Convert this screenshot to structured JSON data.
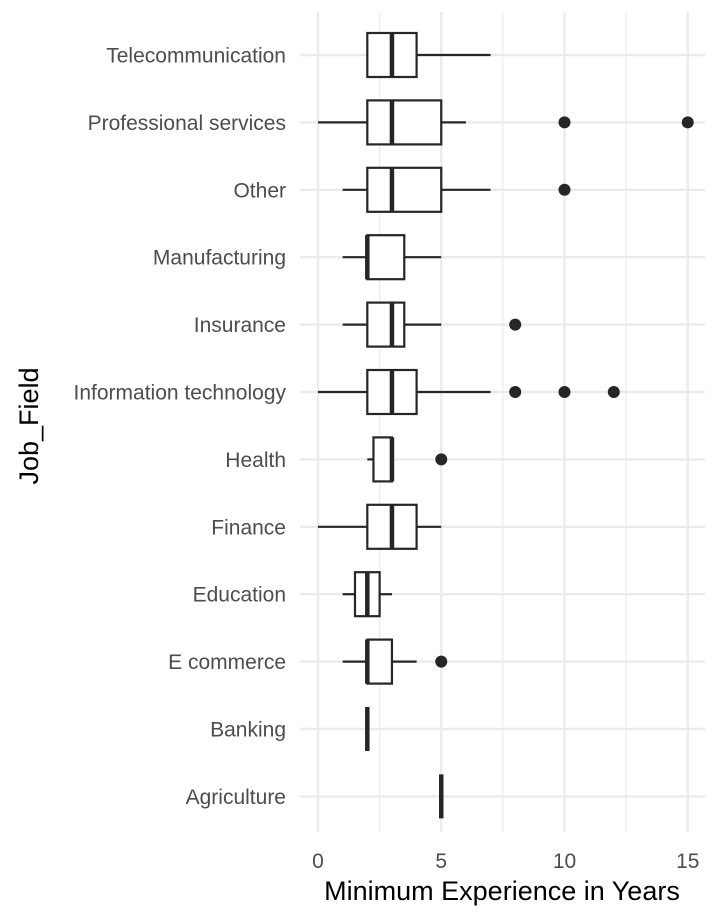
{
  "chart_data": {
    "type": "boxplot",
    "orientation": "horizontal",
    "xlabel": "Minimum Experience in Years",
    "ylabel": "Job_Field",
    "xlim": [
      -0.6,
      15.4
    ],
    "xticks": [
      0,
      5,
      10,
      15
    ],
    "grid": true,
    "categories": [
      "Telecommunication",
      "Professional services",
      "Other",
      "Manufacturing",
      "Insurance",
      "Information technology",
      "Health",
      "Finance",
      "Education",
      "E commerce",
      "Banking",
      "Agriculture"
    ],
    "boxes": [
      {
        "category": "Telecommunication",
        "whisker_low": 2,
        "q1": 2,
        "median": 3,
        "q3": 4,
        "whisker_high": 7,
        "outliers": []
      },
      {
        "category": "Professional services",
        "whisker_low": 0,
        "q1": 2,
        "median": 3,
        "q3": 5,
        "whisker_high": 6,
        "outliers": [
          10,
          15
        ]
      },
      {
        "category": "Other",
        "whisker_low": 1,
        "q1": 2,
        "median": 3,
        "q3": 5,
        "whisker_high": 7,
        "outliers": [
          10
        ]
      },
      {
        "category": "Manufacturing",
        "whisker_low": 1,
        "q1": 2,
        "median": 2,
        "q3": 3.5,
        "whisker_high": 5,
        "outliers": []
      },
      {
        "category": "Insurance",
        "whisker_low": 1,
        "q1": 2,
        "median": 3,
        "q3": 3.5,
        "whisker_high": 5,
        "outliers": [
          8
        ]
      },
      {
        "category": "Information technology",
        "whisker_low": 0,
        "q1": 2,
        "median": 3,
        "q3": 4,
        "whisker_high": 7,
        "outliers": [
          8,
          10,
          12
        ]
      },
      {
        "category": "Health",
        "whisker_low": 2,
        "q1": 2.25,
        "median": 3,
        "q3": 3,
        "whisker_high": 3,
        "outliers": [
          5
        ]
      },
      {
        "category": "Finance",
        "whisker_low": 0,
        "q1": 2,
        "median": 3,
        "q3": 4,
        "whisker_high": 5,
        "outliers": []
      },
      {
        "category": "Education",
        "whisker_low": 1,
        "q1": 1.5,
        "median": 2,
        "q3": 2.5,
        "whisker_high": 3,
        "outliers": []
      },
      {
        "category": "E commerce",
        "whisker_low": 1,
        "q1": 2,
        "median": 2,
        "q3": 3,
        "whisker_high": 4,
        "outliers": [
          5
        ]
      },
      {
        "category": "Banking",
        "whisker_low": 2,
        "q1": 2,
        "median": 2,
        "q3": 2,
        "whisker_high": 2,
        "outliers": []
      },
      {
        "category": "Agriculture",
        "whisker_low": 5,
        "q1": 5,
        "median": 5,
        "q3": 5,
        "whisker_high": 5,
        "outliers": []
      }
    ],
    "colors": {
      "box": "#262626",
      "fill": "#ffffff",
      "grid": "#ebebeb",
      "tick_label": "#4d4d4d"
    }
  }
}
